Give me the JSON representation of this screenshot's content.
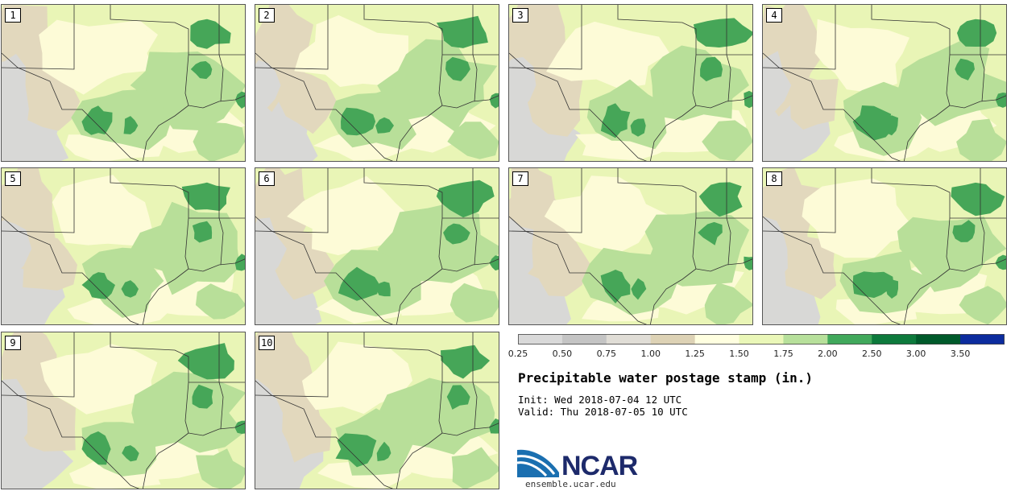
{
  "title": "Precipitable water postage stamp (in.)",
  "init_label": "Init: Wed 2018-07-04 12 UTC",
  "valid_label": "Valid: Thu 2018-07-05 10 UTC",
  "logo_text": "NCAR",
  "site": "ensemble.ucar.edu",
  "members": [
    "1",
    "2",
    "3",
    "4",
    "5",
    "6",
    "7",
    "8",
    "9",
    "10"
  ],
  "colorbar": {
    "ticks": [
      "0.25",
      "0.50",
      "0.75",
      "1.00",
      "1.25",
      "1.50",
      "1.75",
      "2.00",
      "2.50",
      "3.00",
      "3.50"
    ],
    "colors": [
      "#d9d9d9",
      "#c4c4c4",
      "#e0ddd6",
      "#ddd2b5",
      "#ffffe0",
      "#eaf7b8",
      "#b7e09b",
      "#41a95c",
      "#0d7a3c",
      "#005a2b",
      "#0c2c9e"
    ]
  },
  "palette": {
    "gray": "#d8d8d6",
    "tan": "#e2d8bd",
    "cream": "#fdfbd7",
    "lightgreen": "#e9f5b6",
    "green": "#b8df99",
    "darkgreen": "#46a658",
    "border": "#333333"
  }
}
